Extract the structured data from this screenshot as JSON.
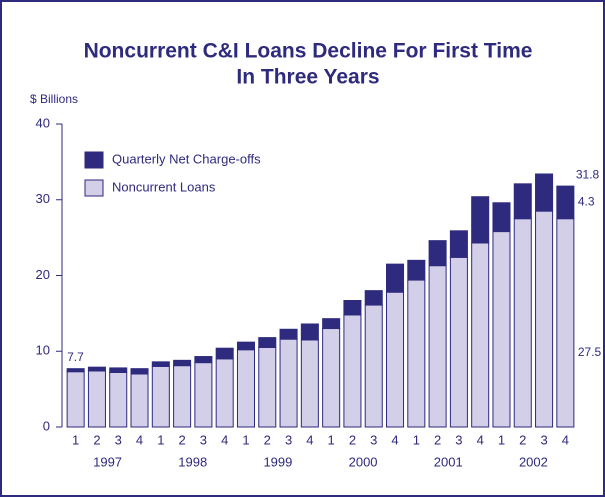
{
  "chart_data": {
    "type": "stacked-bar",
    "title": [
      "Noncurrent C&I Loans Decline For First Time",
      "In Three Years"
    ],
    "y_label": "$ Billions",
    "categories": [
      "1",
      "2",
      "3",
      "4",
      "1",
      "2",
      "3",
      "4",
      "1",
      "2",
      "3",
      "4",
      "1",
      "2",
      "3",
      "4",
      "1",
      "2",
      "3",
      "4",
      "1",
      "2",
      "3",
      "4"
    ],
    "year_labels": [
      "1997",
      "1998",
      "1999",
      "2000",
      "2001",
      "2002"
    ],
    "series": [
      {
        "name": "Noncurrent Loans",
        "color": "#d3cfe8",
        "values": [
          7.3,
          7.4,
          7.2,
          7.0,
          8.0,
          8.1,
          8.5,
          9.0,
          10.2,
          10.5,
          11.6,
          11.5,
          13.0,
          14.8,
          16.1,
          17.8,
          19.4,
          21.3,
          22.4,
          24.3,
          25.8,
          27.5,
          28.5,
          27.5
        ],
        "value_labels": [
          null,
          null,
          null,
          null,
          null,
          null,
          null,
          null,
          null,
          null,
          null,
          null,
          null,
          null,
          null,
          null,
          null,
          null,
          null,
          null,
          null,
          null,
          null,
          "27.5"
        ]
      },
      {
        "name": "Quarterly Net Charge-offs",
        "color": "#2e2a7e",
        "values": [
          0.4,
          0.5,
          0.6,
          0.7,
          0.6,
          0.7,
          0.8,
          1.4,
          1.0,
          1.3,
          1.3,
          2.1,
          1.3,
          1.9,
          1.9,
          3.7,
          2.6,
          3.3,
          3.5,
          6.1,
          3.8,
          4.6,
          4.9,
          4.3
        ],
        "value_labels": [
          null,
          null,
          null,
          null,
          null,
          null,
          null,
          null,
          null,
          null,
          null,
          null,
          null,
          null,
          null,
          null,
          null,
          null,
          null,
          null,
          null,
          null,
          null,
          "4.3"
        ]
      }
    ],
    "total_labels": [
      "7.7",
      null,
      null,
      null,
      null,
      null,
      null,
      null,
      null,
      null,
      null,
      null,
      null,
      null,
      null,
      null,
      null,
      null,
      null,
      null,
      null,
      null,
      null,
      "31.8"
    ],
    "ylim": [
      0,
      40
    ],
    "yticks": [
      0,
      10,
      20,
      30,
      40
    ],
    "grid": false
  }
}
